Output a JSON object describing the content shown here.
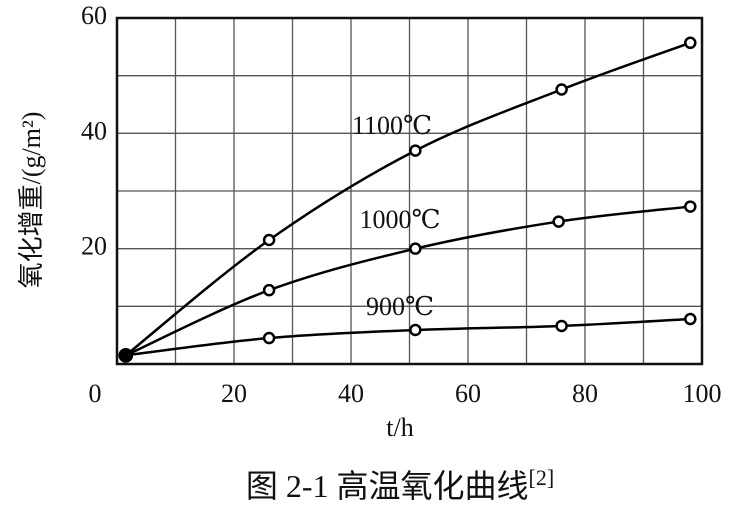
{
  "chart_data": {
    "type": "line",
    "x_label": "t/h",
    "y_label": "氧化增重/(g/m²)",
    "caption": "图 2-1  高温氧化曲线",
    "caption_ref": "[2]",
    "xlim": [
      0,
      100
    ],
    "ylim": [
      0,
      60
    ],
    "xticks": [
      0,
      20,
      40,
      60,
      80,
      100
    ],
    "yticks": [
      0,
      20,
      40,
      60
    ],
    "xgrid": [
      10,
      20,
      30,
      40,
      50,
      60,
      70,
      80,
      90
    ],
    "ygrid": [
      10,
      20,
      30,
      40,
      50
    ],
    "series": [
      {
        "name": "1100℃",
        "color": "#000000",
        "x": [
          1.5,
          26,
          51,
          76,
          98
        ],
        "values": [
          1.5,
          21.5,
          37,
          47.6,
          55.7
        ]
      },
      {
        "name": "1000℃",
        "color": "#000000",
        "x": [
          1.5,
          26,
          51,
          75.5,
          98
        ],
        "values": [
          1.5,
          12.8,
          20,
          24.7,
          27.3
        ]
      },
      {
        "name": "900℃",
        "color": "#000000",
        "x": [
          1.5,
          26,
          51,
          76,
          98
        ],
        "values": [
          1.5,
          4.5,
          5.9,
          6.6,
          7.8
        ]
      }
    ]
  }
}
